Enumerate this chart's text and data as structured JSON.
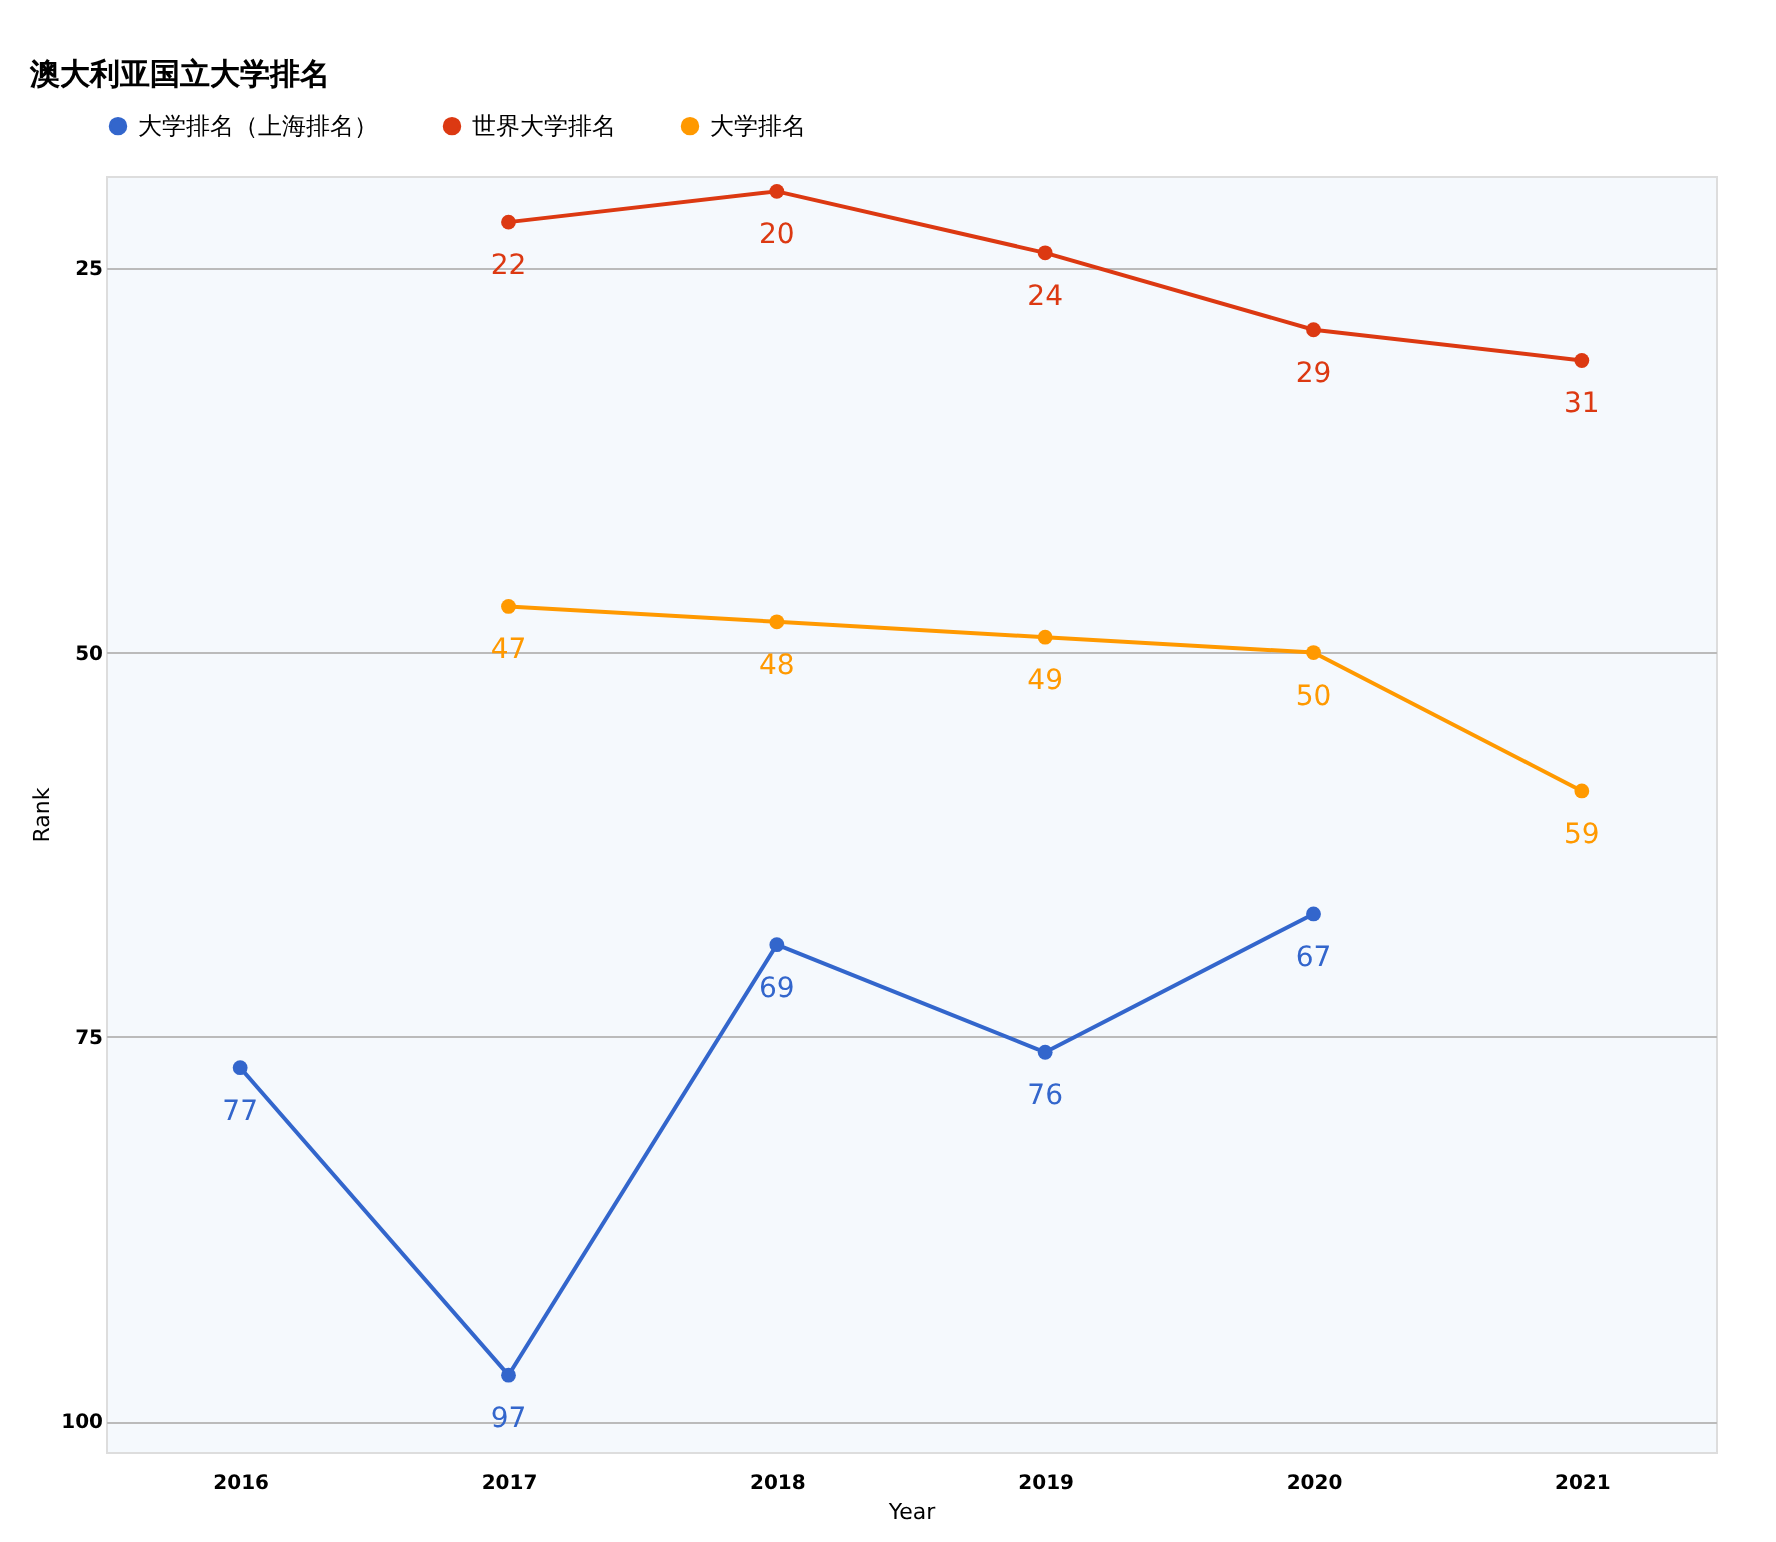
{
  "chart_data": {
    "type": "line",
    "title": "澳大利亚国立大学排名",
    "xlabel": "Year",
    "ylabel": "Rank",
    "categories": [
      "2016",
      "2017",
      "2018",
      "2019",
      "2020",
      "2021"
    ],
    "series": [
      {
        "name": "大学排名（上海排名）",
        "color": "#3366cc",
        "values": [
          77,
          97,
          69,
          76,
          67,
          null
        ]
      },
      {
        "name": "世界大学排名",
        "color": "#dc3912",
        "values": [
          null,
          22,
          20,
          24,
          29,
          31
        ]
      },
      {
        "name": "大学排名",
        "color": "#ff9900",
        "values": [
          null,
          47,
          48,
          49,
          50,
          59
        ]
      }
    ],
    "ylim": [
      102,
      19
    ],
    "yticks": [
      25,
      50,
      75,
      100
    ],
    "grid": "y",
    "legend": "top",
    "marker": "circle",
    "line_style": "solid",
    "data_labels": true
  }
}
